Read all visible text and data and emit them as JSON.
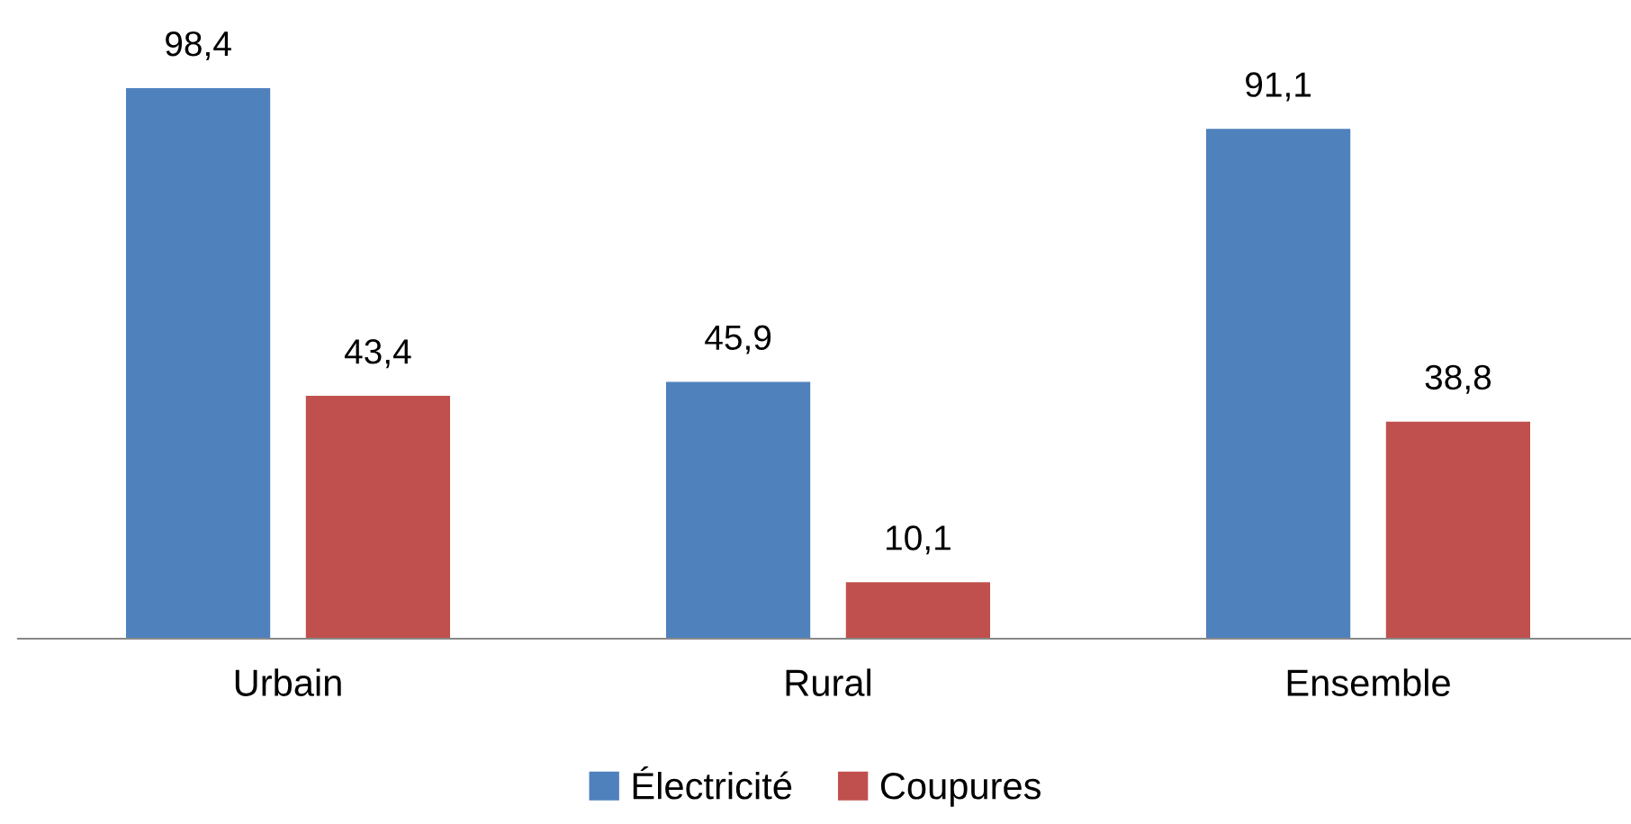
{
  "chart_data": {
    "type": "bar",
    "categories": [
      "Urbain",
      "Rural",
      "Ensemble"
    ],
    "series": [
      {
        "name": "Électricité",
        "color": "#4f81bd",
        "values": [
          98.4,
          45.9,
          91.1
        ],
        "value_labels": [
          "98,4",
          "45,9",
          "91,1"
        ]
      },
      {
        "name": "Coupures",
        "color": "#c0504d",
        "values": [
          43.4,
          10.1,
          38.8
        ],
        "value_labels": [
          "43,4",
          "10,1",
          "38,8"
        ]
      }
    ],
    "legend": "bottom",
    "grid": false
  }
}
